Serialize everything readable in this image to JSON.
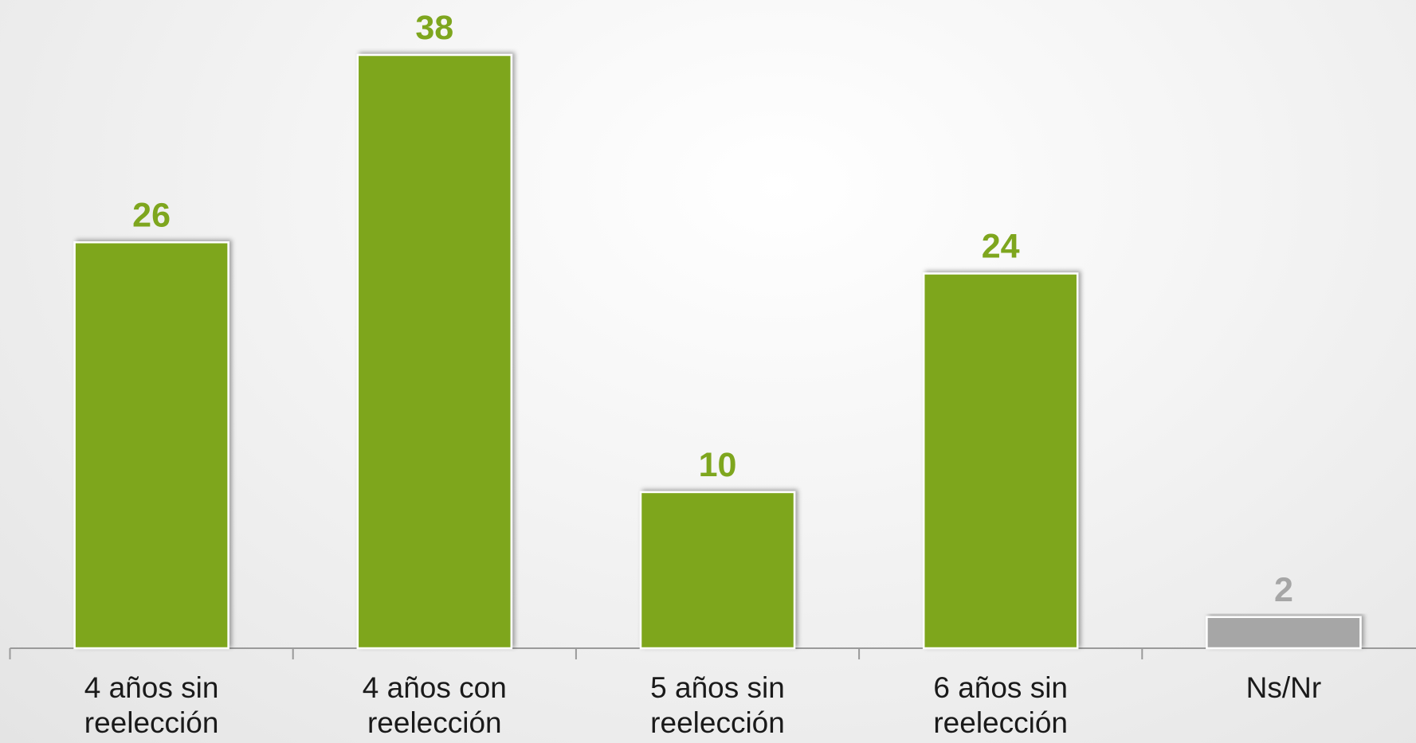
{
  "chart_data": {
    "type": "bar",
    "categories": [
      "4 años sin reelección",
      "4 años con reelección",
      "5 años sin reelección",
      "6 años sin reelección",
      "Ns/Nr"
    ],
    "values": [
      26,
      38,
      10,
      24,
      2
    ],
    "colors": [
      "#7ea61e",
      "#7ea61e",
      "#7ea61e",
      "#7ea61e",
      "#a6a6a6"
    ]
  }
}
